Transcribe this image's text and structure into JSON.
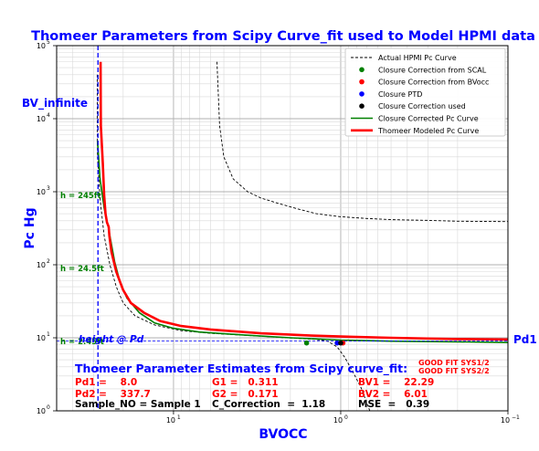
{
  "title": "Thomeer Parameters from Scipy Curve_fit used to Model HPMI data",
  "xlabel": "BVOCC",
  "ylabel": "Pc Hg",
  "colors": {
    "title": "#0000ff",
    "actual": "#000000",
    "closure_corrected": "#008000",
    "modeled": "#ff0000",
    "scal_marker": "#008000",
    "bvocc_marker": "#ff0000",
    "ptd_marker": "#0000ff",
    "used_marker": "#000000",
    "bv_infinite_line": "#0000ff"
  },
  "annotations": {
    "bv_infinite": "BV_infinite",
    "pd1": "Pd1",
    "height_at_pd": "height @ Pd",
    "h_245ft": "h = 245ft",
    "h_24_5ft": "h = 24.5ft",
    "h_2_45ft": "h = 2.45ft"
  },
  "estimates": {
    "heading": "Thomeer Parameter Estimates from Scipy curve_fit:",
    "good_fit_1": "GOOD FIT SYS1/2",
    "good_fit_2": "GOOD FIT SYS2/2",
    "pd1": "Pd1 =    8.0",
    "pd2": "Pd2 =    337.7",
    "g1": "G1 =   0.311",
    "g2": "G2 =   0.171",
    "bv1": "BV1 =    22.29",
    "bv2": "BV2 =    6.01",
    "sample": "Sample_NO = Sample 1",
    "c_correction": "C_Correction  =  1.18",
    "mse": "MSE  =   0.39"
  },
  "legend": [
    {
      "label": "Actual HPMI Pc Curve",
      "kind": "line-dashed",
      "color": "#000000"
    },
    {
      "label": "Closure Correction from SCAL",
      "kind": "marker",
      "color": "#008000"
    },
    {
      "label": "Closure Correction from BVocc",
      "kind": "marker",
      "color": "#ff0000"
    },
    {
      "label": "Closure PTD",
      "kind": "marker",
      "color": "#0000ff"
    },
    {
      "label": "Closure Correction used",
      "kind": "marker",
      "color": "#000000"
    },
    {
      "label": "Closure Corrected Pc Curve",
      "kind": "line",
      "color": "#008000"
    },
    {
      "label": "Thomeer Modeled Pc Curve",
      "kind": "line-thick",
      "color": "#ff0000"
    }
  ],
  "chart_data": {
    "type": "line",
    "title": "Thomeer Parameters from Scipy Curve_fit used to Model HPMI data",
    "xlabel": "BVOCC",
    "ylabel": "Pc Hg",
    "x_scale": "log",
    "x_inverted": true,
    "y_scale": "log",
    "xlim": [
      50,
      0.1
    ],
    "ylim": [
      1,
      100000
    ],
    "x_ticks": [
      {
        "value": 10,
        "label": "10"
      },
      {
        "value": 1,
        "label": "10"
      },
      {
        "value": 0.1,
        "label": "10"
      }
    ],
    "x_tick_exponents": [
      "1",
      "0",
      "−1"
    ],
    "y_ticks": [
      {
        "value": 1,
        "label": "10"
      },
      {
        "value": 10,
        "label": "10"
      },
      {
        "value": 100,
        "label": "10"
      },
      {
        "value": 1000,
        "label": "10"
      },
      {
        "value": 10000,
        "label": "10"
      },
      {
        "value": 100000,
        "label": "10"
      }
    ],
    "y_tick_exponents": [
      "0",
      "1",
      "2",
      "3",
      "4",
      "5"
    ],
    "grid": true,
    "legend_position": "top-right",
    "bv_infinite_x": 28.3,
    "height_at_pd_y": 9,
    "series": [
      {
        "name": "Actual HPMI Pc Curve",
        "style": "dashed",
        "points": [
          [
            5.5,
            60000
          ],
          [
            5.3,
            8000
          ],
          [
            5.0,
            3000
          ],
          [
            4.4,
            1500
          ],
          [
            3.6,
            1000
          ],
          [
            3.0,
            820
          ],
          [
            2.4,
            700
          ],
          [
            1.8,
            580
          ],
          [
            1.4,
            500
          ],
          [
            1.0,
            455
          ],
          [
            0.7,
            430
          ],
          [
            0.5,
            415
          ],
          [
            0.3,
            405
          ],
          [
            0.2,
            395
          ],
          [
            0.1,
            390
          ],
          null,
          [
            28.6,
            40000
          ],
          [
            28.5,
            3000
          ],
          [
            27.5,
            800
          ],
          [
            26.0,
            250
          ],
          [
            24.0,
            100
          ],
          [
            22.0,
            50
          ],
          [
            20.0,
            30
          ],
          [
            17.0,
            20
          ],
          [
            13.0,
            15
          ],
          [
            9.0,
            12.5
          ],
          [
            6.0,
            11.5
          ],
          [
            3.0,
            10.5
          ],
          [
            1.8,
            9.8
          ],
          [
            1.4,
            9.5
          ],
          [
            1.2,
            9.0
          ],
          [
            1.05,
            7.5
          ],
          [
            0.95,
            5.5
          ],
          [
            0.85,
            3.5
          ],
          [
            0.75,
            2.0
          ],
          [
            0.7,
            1.3
          ],
          [
            0.67,
            1.0
          ]
        ]
      },
      {
        "name": "Closure Corrected Pc Curve",
        "style": "solid",
        "points": [
          [
            28.5,
            5000
          ],
          [
            27.5,
            1500
          ],
          [
            26.0,
            600
          ],
          [
            25.0,
            380
          ],
          [
            24.5,
            340
          ],
          [
            24.5,
            320
          ],
          [
            23.5,
            190
          ],
          [
            22.5,
            110
          ],
          [
            21.0,
            60
          ],
          [
            19.0,
            35
          ],
          [
            16.0,
            22
          ],
          [
            13.0,
            16
          ],
          [
            10.0,
            13.5
          ],
          [
            7.0,
            12
          ],
          [
            4.0,
            11
          ],
          [
            2.0,
            10
          ],
          [
            1.0,
            9.3
          ],
          [
            0.5,
            9.0
          ],
          [
            0.2,
            8.8
          ],
          [
            0.1,
            8.6
          ]
        ]
      },
      {
        "name": "Thomeer Modeled Pc Curve",
        "style": "thick",
        "points": [
          [
            27.3,
            60000
          ],
          [
            27.2,
            8000
          ],
          [
            26.5,
            2500
          ],
          [
            26.0,
            900
          ],
          [
            25.5,
            500
          ],
          [
            25.0,
            380
          ],
          [
            24.4,
            330
          ],
          [
            24.2,
            250
          ],
          [
            23.5,
            150
          ],
          [
            22.0,
            80
          ],
          [
            20.0,
            45
          ],
          [
            18.0,
            30
          ],
          [
            15.0,
            22
          ],
          [
            12.0,
            17
          ],
          [
            9.0,
            14.5
          ],
          [
            6.0,
            13
          ],
          [
            3.0,
            11.5
          ],
          [
            1.5,
            10.7
          ],
          [
            1.0,
            10.4
          ],
          [
            0.5,
            10.0
          ],
          [
            0.2,
            9.6
          ],
          [
            0.1,
            9.5
          ]
        ]
      }
    ],
    "markers": [
      {
        "name": "Closure Correction from SCAL",
        "x": 1.6,
        "y": 8.5
      },
      {
        "name": "Closure PTD",
        "x": 1.05,
        "y": 8.5
      },
      {
        "name": "Closure Correction from BVocc",
        "x": 0.97,
        "y": 8.5
      },
      {
        "name": "Closure Correction used",
        "x": 1.0,
        "y": 8.5
      }
    ]
  }
}
